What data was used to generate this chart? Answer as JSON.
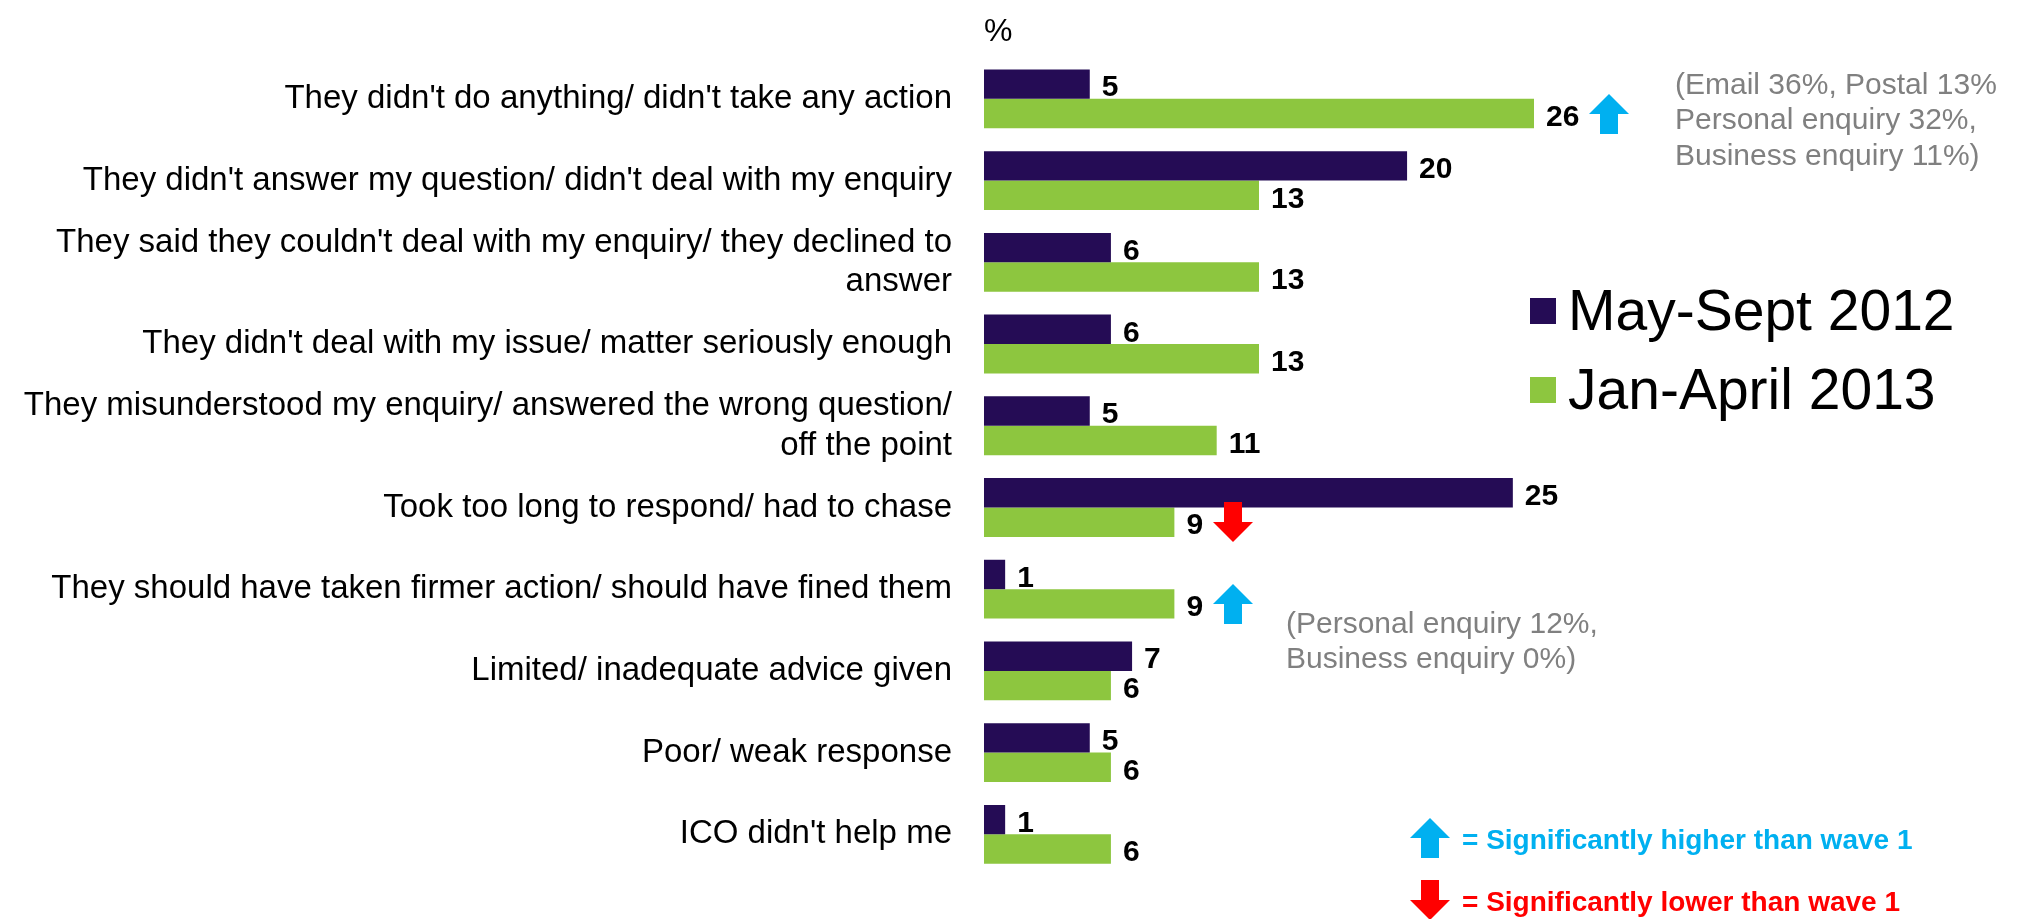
{
  "chart_data": {
    "type": "bar",
    "orientation": "horizontal",
    "title": "%",
    "categories": [
      "They didn't do anything/ didn't take any action",
      "They didn't answer my question/ didn't deal with my enquiry",
      "They said they couldn't deal with my enquiry/ they declined to answer",
      "They didn't deal with my issue/ matter seriously enough",
      "They misunderstood my enquiry/ answered the wrong question/ off the point",
      "Took too long to respond/ had to chase",
      "They should have taken firmer action/ should have fined them",
      "Limited/ inadequate advice given",
      "Poor/ weak response",
      "ICO didn't help me"
    ],
    "series": [
      {
        "name": "May-Sept 2012",
        "color": "#250c55",
        "values": [
          5,
          20,
          6,
          6,
          5,
          25,
          1,
          7,
          5,
          1
        ]
      },
      {
        "name": "Jan-April 2013",
        "color": "#8dc63f",
        "values": [
          26,
          13,
          13,
          13,
          11,
          9,
          9,
          6,
          6,
          6
        ]
      }
    ],
    "data_labels": true,
    "legend": "right",
    "annotations": [
      "(Email 36%, Postal 13% Personal enquiry 32%, Business enquiry 11%)",
      "(Personal enquiry 12%, Business enquiry 0%)",
      "= Significantly higher than wave 1",
      "= Significantly lower than wave 1"
    ]
  }
}
